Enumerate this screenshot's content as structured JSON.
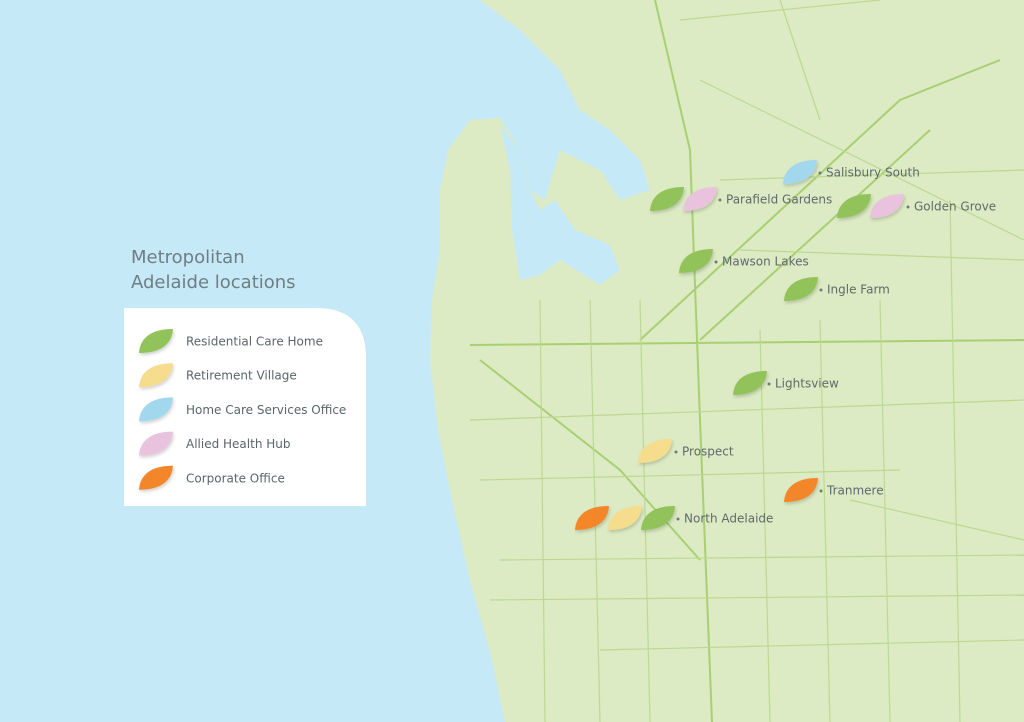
{
  "title": [
    "Metropolitan",
    "Adelaide locations"
  ],
  "legend": [
    {
      "label": "Residential Care Home",
      "color": "#92c35a"
    },
    {
      "label": "Retirement Village",
      "color": "#f6dc8d"
    },
    {
      "label": "Home Care Services Office",
      "color": "#a2d8ee"
    },
    {
      "label": "Allied Health Hub",
      "color": "#e9c2de"
    },
    {
      "label": "Corporate Office",
      "color": "#f4862c"
    }
  ],
  "locations": [
    {
      "label": "Salisbury South",
      "markers": [
        "#a2d8ee"
      ]
    },
    {
      "label": "Parafield Gardens",
      "markers": [
        "#92c35a",
        "#e9c2de"
      ]
    },
    {
      "label": "Golden Grove",
      "markers": [
        "#92c35a",
        "#e9c2de"
      ]
    },
    {
      "label": "Mawson Lakes",
      "markers": [
        "#92c35a"
      ]
    },
    {
      "label": "Ingle Farm",
      "markers": [
        "#92c35a"
      ]
    },
    {
      "label": "Lightsview",
      "markers": [
        "#92c35a"
      ]
    },
    {
      "label": "Prospect",
      "markers": [
        "#f6dc8d"
      ]
    },
    {
      "label": "Tranmere",
      "markers": [
        "#f4862c"
      ]
    },
    {
      "label": "North Adelaide",
      "markers": [
        "#f4862c",
        "#f6dc8d",
        "#92c35a"
      ]
    }
  ]
}
